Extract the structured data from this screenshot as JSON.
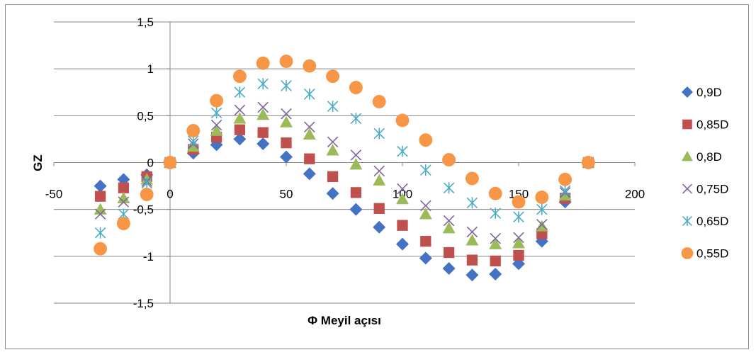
{
  "chart_data": {
    "type": "scatter",
    "title": "",
    "xlabel": "Φ Meyil açısı",
    "ylabel": "GZ",
    "xlim": [
      -50,
      200
    ],
    "ylim": [
      -1.5,
      1.5
    ],
    "x_ticks": [
      -50,
      0,
      50,
      100,
      150,
      200
    ],
    "y_ticks": [
      -1.5,
      -1,
      -0.5,
      0,
      0.5,
      1,
      1.5
    ],
    "x_tick_labels": [
      "-50",
      "0",
      "50",
      "100",
      "150",
      "200"
    ],
    "y_tick_labels": [
      "-1,5",
      "-1",
      "-0,5",
      "0",
      "0,5",
      "1",
      "1,5"
    ],
    "grid": "horizontal",
    "legend_position": "right",
    "x": [
      -30,
      -20,
      -10,
      0,
      10,
      20,
      30,
      40,
      50,
      60,
      70,
      80,
      90,
      100,
      110,
      120,
      130,
      140,
      150,
      160,
      170,
      180
    ],
    "series": [
      {
        "name": "0,9D",
        "marker": "diamond",
        "color": "#4472C4",
        "values": [
          -0.25,
          -0.18,
          -0.13,
          0,
          0.1,
          0.19,
          0.25,
          0.2,
          0.06,
          -0.12,
          -0.33,
          -0.5,
          -0.69,
          -0.87,
          -1.02,
          -1.13,
          -1.2,
          -1.19,
          -1.08,
          -0.84,
          -0.42,
          0
        ]
      },
      {
        "name": "0,85D",
        "marker": "square",
        "color": "#C0504D",
        "values": [
          -0.36,
          -0.27,
          -0.15,
          0,
          0.14,
          0.27,
          0.35,
          0.32,
          0.21,
          0.04,
          -0.15,
          -0.32,
          -0.49,
          -0.67,
          -0.84,
          -0.96,
          -1.04,
          -1.05,
          -0.99,
          -0.76,
          -0.38,
          0
        ]
      },
      {
        "name": "0,8D",
        "marker": "triangle",
        "color": "#9BBB59",
        "values": [
          -0.5,
          -0.38,
          -0.18,
          0,
          0.17,
          0.34,
          0.47,
          0.51,
          0.43,
          0.3,
          0.13,
          -0.02,
          -0.19,
          -0.39,
          -0.55,
          -0.7,
          -0.83,
          -0.87,
          -0.86,
          -0.68,
          -0.35,
          0
        ]
      },
      {
        "name": "0,75D",
        "marker": "x",
        "color": "#8064A2",
        "values": [
          -0.55,
          -0.42,
          -0.2,
          0,
          0.2,
          0.4,
          0.56,
          0.59,
          0.52,
          0.38,
          0.22,
          0.08,
          -0.09,
          -0.28,
          -0.46,
          -0.62,
          -0.74,
          -0.81,
          -0.8,
          -0.66,
          -0.32,
          0
        ]
      },
      {
        "name": "0,65D",
        "marker": "asterisk",
        "color": "#4BACC6",
        "values": [
          -0.75,
          -0.55,
          -0.22,
          0,
          0.23,
          0.53,
          0.75,
          0.84,
          0.82,
          0.73,
          0.6,
          0.47,
          0.31,
          0.12,
          -0.08,
          -0.27,
          -0.43,
          -0.54,
          -0.58,
          -0.5,
          -0.3,
          0
        ]
      },
      {
        "name": "0,55D",
        "marker": "circle",
        "color": "#F79646",
        "values": [
          -0.92,
          -0.65,
          -0.34,
          0,
          0.34,
          0.66,
          0.92,
          1.06,
          1.08,
          1.03,
          0.92,
          0.8,
          0.65,
          0.45,
          0.24,
          0.03,
          -0.17,
          -0.33,
          -0.42,
          -0.37,
          -0.18,
          0
        ]
      }
    ]
  }
}
